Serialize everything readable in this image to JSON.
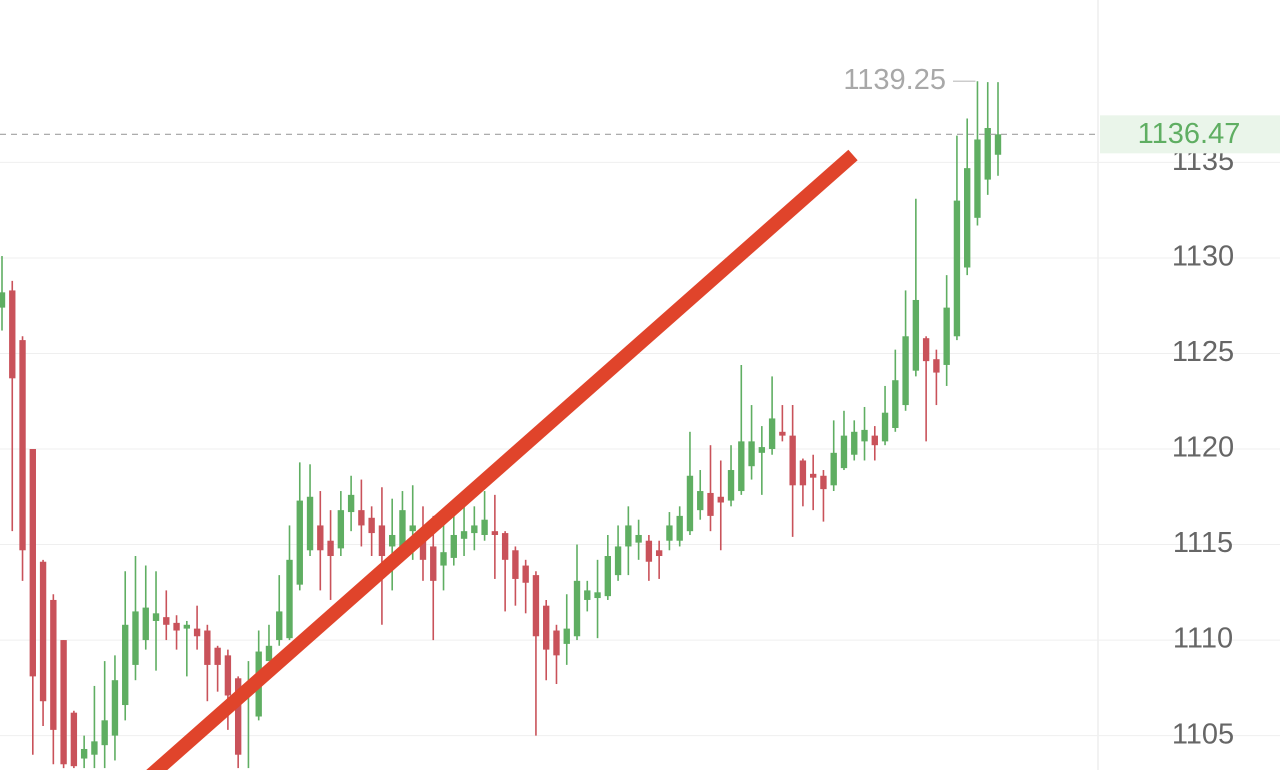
{
  "chart_data": {
    "type": "candlestick",
    "up_color": "#5fae62",
    "down_color": "#c9525a",
    "ylim": [
      1103.2,
      1143.5
    ],
    "yticks": [
      1105,
      1110,
      1115,
      1120,
      1125,
      1130,
      1135
    ],
    "grid": true,
    "last_price": 1136.47,
    "high_label": 1139.25,
    "open": [
      1127.4,
      1128.3,
      1125.7,
      1120.0,
      1114.1,
      1112.1,
      1110.0,
      1106.2,
      1103.8,
      1104.0,
      1104.5,
      1105.0,
      1106.6,
      1108.7,
      1110.0,
      1111.0,
      1111.2,
      1110.9,
      1110.6,
      1110.6,
      1110.5,
      1109.6,
      1109.2,
      1108.0,
      1107.2,
      1106.0,
      1108.9,
      1110.0,
      1110.1,
      1112.9,
      1114.7,
      1116.0,
      1115.2,
      1114.8,
      1116.7,
      1116.8,
      1116.4,
      1116.0,
      1114.9,
      1114.7,
      1115.7,
      1115.7,
      1114.9,
      1113.9,
      1114.3,
      1115.3,
      1115.6,
      1115.5,
      1115.7,
      1115.6,
      1114.7,
      1113.9,
      1113.4,
      1111.8,
      1110.5,
      1109.8,
      1110.2,
      1112.1,
      1112.2,
      1112.3,
      1113.4,
      1114.9,
      1115.1,
      1115.2,
      1114.7,
      1115.2,
      1115.2,
      1115.7,
      1116.8,
      1117.7,
      1117.5,
      1117.3,
      1117.8,
      1119.1,
      1119.8,
      1120.0,
      1120.9,
      1120.7,
      1119.4,
      1118.7,
      1118.6,
      1118.1,
      1119.0,
      1119.7,
      1120.4,
      1120.7,
      1120.4,
      1121.1,
      1122.3,
      1124.1,
      1125.8,
      1124.7,
      1124.4,
      1125.9,
      1129.5,
      1132.1,
      1134.1,
      1135.4
    ],
    "high": [
      1130.1,
      1128.8,
      1125.9,
      1120.0,
      1114.2,
      1112.4,
      1110.0,
      1106.3,
      1105.0,
      1107.6,
      1108.9,
      1109.2,
      1113.6,
      1114.4,
      1113.9,
      1113.6,
      1112.6,
      1111.3,
      1111.0,
      1111.8,
      1110.8,
      1109.7,
      1109.5,
      1108.1,
      1108.9,
      1110.5,
      1110.8,
      1113.4,
      1116.0,
      1119.3,
      1119.2,
      1117.8,
      1116.8,
      1117.8,
      1118.6,
      1118.4,
      1117.0,
      1118.0,
      1117.4,
      1117.8,
      1118.1,
      1117.0,
      1116.5,
      1116.3,
      1117.0,
      1117.8,
      1117.0,
      1117.8,
      1117.6,
      1115.7,
      1114.9,
      1114.2,
      1113.6,
      1112.1,
      1110.8,
      1112.4,
      1115.0,
      1113.1,
      1114.2,
      1115.5,
      1116.0,
      1117.0,
      1116.3,
      1115.5,
      1115.2,
      1116.7,
      1117.0,
      1120.9,
      1118.9,
      1120.2,
      1119.4,
      1120.2,
      1124.4,
      1122.3,
      1121.2,
      1123.8,
      1122.3,
      1122.3,
      1119.5,
      1119.7,
      1118.9,
      1121.5,
      1122.0,
      1121.5,
      1122.2,
      1121.2,
      1123.3,
      1125.2,
      1128.3,
      1133.1,
      1125.9,
      1125.2,
      1129.1,
      1136.4,
      1137.3,
      1139.25,
      1139.2,
      1139.2
    ],
    "low": [
      1126.2,
      1115.7,
      1113.1,
      1104.0,
      1105.5,
      1103.5,
      1103.3,
      1103.3,
      1103.3,
      1103.3,
      1103.3,
      1103.7,
      1105.8,
      1107.9,
      1109.5,
      1108.4,
      1110.0,
      1109.5,
      1108.1,
      1109.5,
      1106.8,
      1107.3,
      1105.3,
      1103.3,
      1103.3,
      1105.8,
      1108.9,
      1109.7,
      1110.0,
      1112.6,
      1114.4,
      1112.6,
      1112.1,
      1114.4,
      1115.7,
      1114.9,
      1114.4,
      1110.8,
      1112.6,
      1114.2,
      1114.2,
      1113.1,
      1110.0,
      1112.6,
      1113.9,
      1114.4,
      1114.7,
      1115.2,
      1113.2,
      1111.5,
      1111.8,
      1111.4,
      1105.0,
      1107.9,
      1107.7,
      1108.7,
      1110.0,
      1111.5,
      1110.1,
      1112.1,
      1113.1,
      1113.4,
      1114.2,
      1113.1,
      1113.2,
      1114.7,
      1114.9,
      1115.5,
      1116.3,
      1115.7,
      1114.7,
      1117.0,
      1117.6,
      1118.4,
      1117.6,
      1119.7,
      1120.4,
      1115.4,
      1117.0,
      1116.8,
      1116.2,
      1117.8,
      1118.9,
      1119.4,
      1119.4,
      1119.4,
      1120.2,
      1120.9,
      1122.0,
      1123.8,
      1120.4,
      1122.3,
      1123.3,
      1125.7,
      1129.1,
      1131.7,
      1133.3,
      1134.3
    ],
    "close": [
      1128.2,
      1123.7,
      1114.7,
      1108.1,
      1106.8,
      1105.3,
      1103.5,
      1103.4,
      1104.3,
      1104.7,
      1105.8,
      1107.9,
      1110.8,
      1111.5,
      1111.7,
      1111.4,
      1110.8,
      1110.5,
      1110.8,
      1110.2,
      1108.7,
      1108.7,
      1107.1,
      1104.0,
      1107.7,
      1109.4,
      1109.7,
      1111.5,
      1114.2,
      1117.3,
      1117.5,
      1114.7,
      1114.4,
      1116.8,
      1117.6,
      1116.0,
      1115.6,
      1114.4,
      1115.5,
      1116.8,
      1116.0,
      1114.2,
      1113.1,
      1114.6,
      1115.5,
      1115.7,
      1116.0,
      1116.3,
      1115.5,
      1114.2,
      1113.2,
      1113.0,
      1110.2,
      1109.5,
      1109.2,
      1110.6,
      1113.1,
      1112.6,
      1112.5,
      1114.4,
      1114.9,
      1116.0,
      1115.5,
      1114.1,
      1114.4,
      1116.0,
      1116.5,
      1118.6,
      1117.8,
      1116.5,
      1117.2,
      1118.9,
      1120.4,
      1120.4,
      1120.1,
      1121.6,
      1120.7,
      1118.1,
      1118.1,
      1118.5,
      1117.9,
      1119.8,
      1120.7,
      1120.9,
      1121.0,
      1120.2,
      1121.9,
      1123.6,
      1125.9,
      1127.8,
      1124.6,
      1124.0,
      1127.4,
      1133.0,
      1134.7,
      1136.2,
      1136.8,
      1136.47
    ]
  }
}
